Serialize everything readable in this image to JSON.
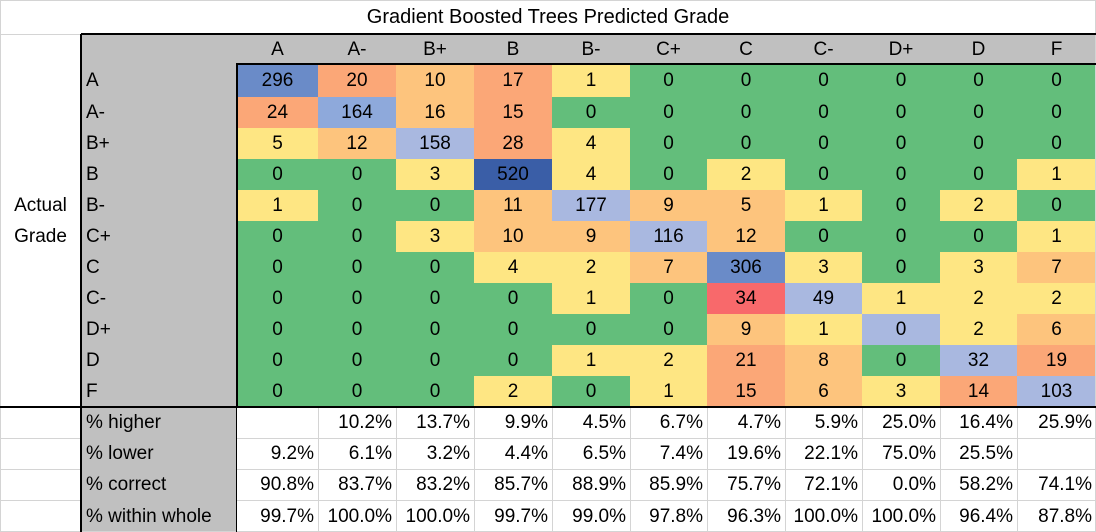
{
  "title": "Gradient Boosted Trees Predicted Grade",
  "actual_label_lines": [
    "Actual",
    "Grade"
  ],
  "colors": {
    "gray_band": "#c0c0c0",
    "white": "#ffffff",
    "green": "#63be7b",
    "yellow": "#fee683",
    "orange_light": "#fdc47d",
    "orange": "#fba777",
    "red": "#f8696b",
    "blue_light": "#a9b8e0",
    "blue": "#8ea9db",
    "blue_mid": "#6a8bc8",
    "blue_dark": "#3a5ea7"
  },
  "chart_data": {
    "type": "heatmap",
    "title": "Gradient Boosted Trees Predicted Grade",
    "xlabel": "Gradient Boosted Trees Predicted Grade",
    "ylabel": "Actual Grade",
    "predicted_grades": [
      "A",
      "A-",
      "B+",
      "B",
      "B-",
      "C+",
      "C",
      "C-",
      "D+",
      "D",
      "F"
    ],
    "actual_grades": [
      "A",
      "A-",
      "B+",
      "B",
      "B-",
      "C+",
      "C",
      "C-",
      "D+",
      "D",
      "F"
    ],
    "matrix": [
      [
        296,
        20,
        10,
        17,
        1,
        0,
        0,
        0,
        0,
        0,
        0
      ],
      [
        24,
        164,
        16,
        15,
        0,
        0,
        0,
        0,
        0,
        0,
        0
      ],
      [
        5,
        12,
        158,
        28,
        4,
        0,
        0,
        0,
        0,
        0,
        0
      ],
      [
        0,
        0,
        3,
        520,
        4,
        0,
        2,
        0,
        0,
        0,
        1
      ],
      [
        1,
        0,
        0,
        11,
        177,
        9,
        5,
        1,
        0,
        2,
        0
      ],
      [
        0,
        0,
        3,
        10,
        9,
        116,
        12,
        0,
        0,
        0,
        1
      ],
      [
        0,
        0,
        0,
        4,
        2,
        7,
        306,
        3,
        0,
        3,
        7
      ],
      [
        0,
        0,
        0,
        0,
        1,
        0,
        34,
        49,
        1,
        2,
        2
      ],
      [
        0,
        0,
        0,
        0,
        0,
        0,
        9,
        1,
        0,
        2,
        6
      ],
      [
        0,
        0,
        0,
        0,
        1,
        2,
        21,
        8,
        0,
        32,
        19
      ],
      [
        0,
        0,
        0,
        2,
        0,
        1,
        15,
        6,
        3,
        14,
        103
      ]
    ],
    "summary_rows": [
      {
        "label": "% higher",
        "values": [
          "",
          "10.2%",
          "13.7%",
          "9.9%",
          "4.5%",
          "6.7%",
          "4.7%",
          "5.9%",
          "25.0%",
          "16.4%",
          "25.9%"
        ]
      },
      {
        "label": "% lower",
        "values": [
          "9.2%",
          "6.1%",
          "3.2%",
          "4.4%",
          "6.5%",
          "7.4%",
          "19.6%",
          "22.1%",
          "75.0%",
          "25.5%",
          ""
        ]
      },
      {
        "label": "% correct",
        "values": [
          "90.8%",
          "83.7%",
          "83.2%",
          "85.7%",
          "88.9%",
          "85.9%",
          "75.7%",
          "72.1%",
          "0.0%",
          "58.2%",
          "74.1%"
        ]
      },
      {
        "label": "% within whole",
        "values": [
          "99.7%",
          "100.0%",
          "100.0%",
          "99.7%",
          "99.0%",
          "97.8%",
          "96.3%",
          "100.0%",
          "100.0%",
          "96.4%",
          "87.8%"
        ]
      }
    ]
  },
  "cell_colors": [
    [
      "blue_mid",
      "orange",
      "orange_light",
      "orange",
      "yellow",
      "green",
      "green",
      "green",
      "green",
      "green",
      "green"
    ],
    [
      "orange",
      "blue",
      "orange_light",
      "orange",
      "green",
      "green",
      "green",
      "green",
      "green",
      "green",
      "green"
    ],
    [
      "yellow",
      "orange_light",
      "blue_light",
      "orange",
      "yellow",
      "green",
      "green",
      "green",
      "green",
      "green",
      "green"
    ],
    [
      "green",
      "green",
      "yellow",
      "blue_dark",
      "yellow",
      "green",
      "yellow",
      "green",
      "green",
      "green",
      "yellow"
    ],
    [
      "yellow",
      "green",
      "green",
      "orange_light",
      "blue_light",
      "orange_light",
      "orange_light",
      "yellow",
      "green",
      "yellow",
      "green"
    ],
    [
      "green",
      "green",
      "yellow",
      "orange_light",
      "orange_light",
      "blue_light",
      "orange_light",
      "green",
      "green",
      "green",
      "yellow"
    ],
    [
      "green",
      "green",
      "green",
      "yellow",
      "yellow",
      "orange_light",
      "blue_mid",
      "yellow",
      "green",
      "yellow",
      "orange_light"
    ],
    [
      "green",
      "green",
      "green",
      "green",
      "yellow",
      "green",
      "red",
      "blue_light",
      "yellow",
      "yellow",
      "yellow"
    ],
    [
      "green",
      "green",
      "green",
      "green",
      "green",
      "green",
      "orange_light",
      "yellow",
      "blue_light",
      "yellow",
      "orange_light"
    ],
    [
      "green",
      "green",
      "green",
      "green",
      "yellow",
      "yellow",
      "orange",
      "orange_light",
      "green",
      "blue_light",
      "orange"
    ],
    [
      "green",
      "green",
      "green",
      "yellow",
      "green",
      "yellow",
      "orange",
      "orange_light",
      "yellow",
      "orange",
      "blue_light"
    ]
  ]
}
